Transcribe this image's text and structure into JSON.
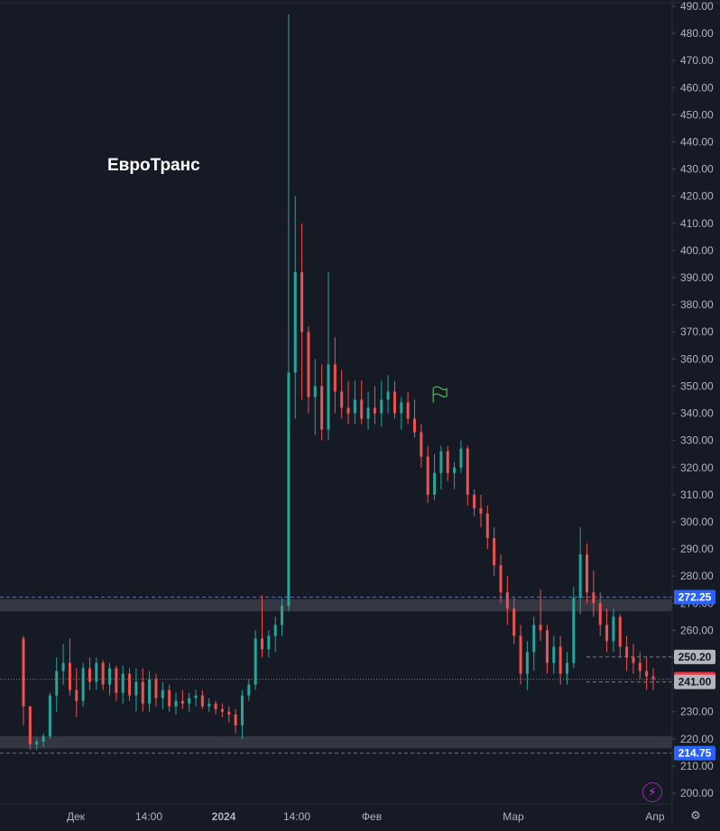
{
  "chart_data": {
    "type": "candlestick",
    "title": "ЕвроТранс",
    "ylim": [
      195,
      491
    ],
    "y_ticks": [
      "490.00",
      "480.00",
      "470.00",
      "460.00",
      "450.00",
      "440.00",
      "430.00",
      "420.00",
      "410.00",
      "400.00",
      "390.00",
      "380.00",
      "370.00",
      "360.00",
      "350.00",
      "340.00",
      "330.00",
      "320.00",
      "310.00",
      "300.00",
      "290.00",
      "280.00",
      "270.00",
      "260.00",
      "250.00",
      "240.00",
      "230.00",
      "220.00",
      "210.00",
      "200.00"
    ],
    "x_ticks": [
      "Дек",
      "14:00",
      "2024",
      "14:00",
      "Фев",
      "Мар",
      "Апр"
    ],
    "price_labels": [
      {
        "value": 272.25,
        "text": "272.25",
        "kind": "blue"
      },
      {
        "value": 250.2,
        "text": "250.20",
        "kind": "grey"
      },
      {
        "value": 242.0,
        "text": "242.00",
        "kind": "red"
      },
      {
        "value": 241.0,
        "text": "241.00",
        "kind": "grey"
      },
      {
        "value": 214.75,
        "text": "214.75",
        "kind": "blue"
      }
    ],
    "zones": [
      {
        "low": 267,
        "high": 271.5
      },
      {
        "low": 216.5,
        "high": 221
      }
    ],
    "dashed_lines": [
      272.25,
      214.75,
      250.2,
      241.0
    ],
    "current_price": 242.0,
    "flag_marker": {
      "x_index": 61,
      "price": 346
    },
    "up_color": "#26a69a",
    "down_color": "#ef5350",
    "candles": [
      [
        257,
        258,
        225,
        232
      ],
      [
        232,
        232,
        216,
        218
      ],
      [
        218,
        220,
        216,
        219
      ],
      [
        219,
        222,
        217,
        221
      ],
      [
        221,
        237,
        220,
        236
      ],
      [
        236,
        250,
        230,
        245
      ],
      [
        245,
        255,
        240,
        248
      ],
      [
        248,
        257,
        236,
        238
      ],
      [
        238,
        246,
        228,
        234
      ],
      [
        234,
        248,
        232,
        246
      ],
      [
        246,
        250,
        238,
        241
      ],
      [
        241,
        250,
        238,
        248
      ],
      [
        248,
        249,
        238,
        240
      ],
      [
        240,
        248,
        236,
        246
      ],
      [
        246,
        247,
        234,
        237
      ],
      [
        237,
        247,
        233,
        244
      ],
      [
        244,
        246,
        234,
        236
      ],
      [
        236,
        246,
        230,
        241
      ],
      [
        241,
        246,
        230,
        233
      ],
      [
        233,
        245,
        230,
        242
      ],
      [
        242,
        244,
        232,
        235
      ],
      [
        235,
        241,
        231,
        238
      ],
      [
        238,
        240,
        230,
        232
      ],
      [
        232,
        237,
        229,
        234
      ],
      [
        234,
        238,
        231,
        233
      ],
      [
        233,
        237,
        230,
        235
      ],
      [
        235,
        238,
        232,
        236
      ],
      [
        236,
        238,
        231,
        232
      ],
      [
        232,
        235,
        230,
        233
      ],
      [
        233,
        234,
        229,
        231
      ],
      [
        231,
        233,
        228,
        230
      ],
      [
        230,
        232,
        226,
        229
      ],
      [
        229,
        231,
        222,
        225
      ],
      [
        225,
        238,
        220,
        236
      ],
      [
        236,
        242,
        234,
        240
      ],
      [
        240,
        260,
        238,
        257
      ],
      [
        257,
        273,
        250,
        253
      ],
      [
        253,
        260,
        250,
        258
      ],
      [
        258,
        265,
        252,
        262
      ],
      [
        262,
        272,
        258,
        269
      ],
      [
        269,
        487,
        267,
        355
      ],
      [
        355,
        420,
        338,
        392
      ],
      [
        392,
        410,
        345,
        370
      ],
      [
        370,
        372,
        340,
        346
      ],
      [
        346,
        360,
        332,
        350
      ],
      [
        350,
        358,
        330,
        334
      ],
      [
        334,
        392,
        330,
        358
      ],
      [
        358,
        368,
        340,
        348
      ],
      [
        348,
        356,
        338,
        342
      ],
      [
        342,
        352,
        336,
        340
      ],
      [
        340,
        352,
        336,
        345
      ],
      [
        345,
        352,
        336,
        338
      ],
      [
        338,
        348,
        334,
        342
      ],
      [
        342,
        350,
        336,
        340
      ],
      [
        340,
        352,
        335,
        345
      ],
      [
        345,
        354,
        340,
        348
      ],
      [
        348,
        352,
        338,
        340
      ],
      [
        340,
        346,
        334,
        344
      ],
      [
        344,
        348,
        336,
        338
      ],
      [
        338,
        345,
        331,
        333
      ],
      [
        333,
        336,
        320,
        324
      ],
      [
        324,
        328,
        307,
        310
      ],
      [
        310,
        325,
        308,
        318
      ],
      [
        318,
        328,
        312,
        326
      ],
      [
        326,
        328,
        315,
        318
      ],
      [
        318,
        322,
        312,
        320
      ],
      [
        320,
        330,
        318,
        327
      ],
      [
        327,
        328,
        306,
        310
      ],
      [
        310,
        312,
        302,
        305
      ],
      [
        305,
        310,
        298,
        303
      ],
      [
        303,
        306,
        290,
        294
      ],
      [
        294,
        298,
        280,
        284
      ],
      [
        284,
        288,
        270,
        274
      ],
      [
        274,
        280,
        262,
        268
      ],
      [
        268,
        272,
        255,
        258
      ],
      [
        258,
        262,
        240,
        244
      ],
      [
        244,
        256,
        238,
        252
      ],
      [
        252,
        265,
        245,
        262
      ],
      [
        262,
        275,
        256,
        260
      ],
      [
        260,
        262,
        244,
        248
      ],
      [
        248,
        258,
        244,
        254
      ],
      [
        254,
        258,
        240,
        244
      ],
      [
        244,
        252,
        240,
        248
      ],
      [
        248,
        276,
        246,
        272
      ],
      [
        272,
        298,
        266,
        288
      ],
      [
        288,
        292,
        270,
        274
      ],
      [
        274,
        282,
        265,
        270
      ],
      [
        270,
        274,
        258,
        262
      ],
      [
        262,
        268,
        252,
        256
      ],
      [
        256,
        268,
        252,
        265
      ],
      [
        265,
        266,
        250,
        254
      ],
      [
        254,
        258,
        245,
        250
      ],
      [
        250,
        255,
        244,
        248
      ],
      [
        248,
        252,
        242,
        245
      ],
      [
        245,
        250,
        238,
        243
      ],
      [
        243,
        246,
        238,
        242
      ]
    ]
  }
}
